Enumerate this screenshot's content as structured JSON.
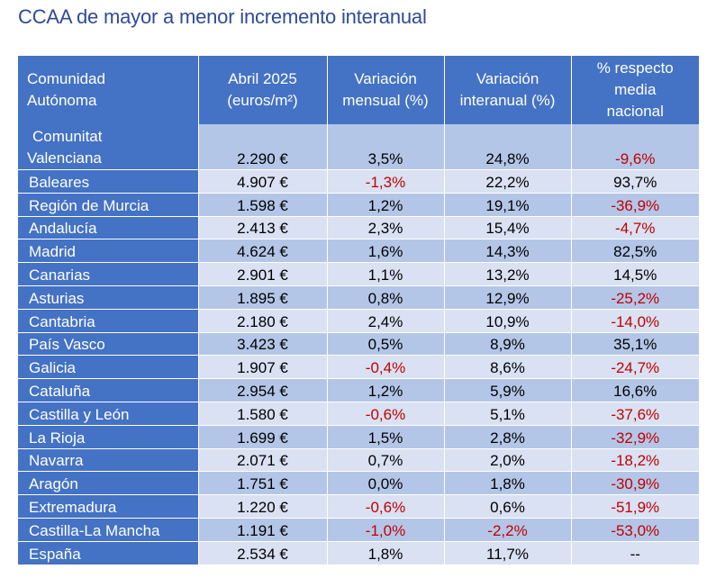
{
  "title": "CCAA de mayor a menor incremento interanual",
  "headers": {
    "c1": [
      "Comunidad",
      "Autónoma"
    ],
    "c2": [
      "Abril 2025",
      "(euros/m²)"
    ],
    "c3": [
      "Variación",
      "mensual (%)"
    ],
    "c4": [
      "Variación",
      "interanual (%)"
    ],
    "c5": [
      "% respecto",
      "media",
      "nacional"
    ]
  },
  "rows": [
    {
      "name": [
        "Comunitat",
        "Valenciana"
      ],
      "price": "2.290 €",
      "monthly": "3,5%",
      "yearly": "24,8%",
      "national": "-9,6%"
    },
    {
      "name": "Baleares",
      "price": "4.907 €",
      "monthly": "-1,3%",
      "yearly": "22,2%",
      "national": "93,7%"
    },
    {
      "name": "Región de Murcia",
      "price": "1.598 €",
      "monthly": "1,2%",
      "yearly": "19,1%",
      "national": "-36,9%"
    },
    {
      "name": "Andalucía",
      "price": "2.413 €",
      "monthly": "2,3%",
      "yearly": "15,4%",
      "national": "-4,7%"
    },
    {
      "name": "Madrid",
      "price": "4.624 €",
      "monthly": "1,6%",
      "yearly": "14,3%",
      "national": "82,5%"
    },
    {
      "name": "Canarias",
      "price": "2.901 €",
      "monthly": "1,1%",
      "yearly": "13,2%",
      "national": "14,5%"
    },
    {
      "name": "Asturias",
      "price": "1.895 €",
      "monthly": "0,8%",
      "yearly": "12,9%",
      "national": "-25,2%"
    },
    {
      "name": "Cantabria",
      "price": "2.180 €",
      "monthly": "2,4%",
      "yearly": "10,9%",
      "national": "-14,0%"
    },
    {
      "name": "País Vasco",
      "price": "3.423 €",
      "monthly": "0,5%",
      "yearly": "8,9%",
      "national": "35,1%"
    },
    {
      "name": "Galicia",
      "price": "1.907 €",
      "monthly": "-0,4%",
      "yearly": "8,6%",
      "national": "-24,7%"
    },
    {
      "name": "Cataluña",
      "price": "2.954 €",
      "monthly": "1,2%",
      "yearly": "5,9%",
      "national": "16,6%"
    },
    {
      "name": "Castilla y León",
      "price": "1.580 €",
      "monthly": "-0,6%",
      "yearly": "5,1%",
      "national": "-37,6%"
    },
    {
      "name": "La Rioja",
      "price": "1.699 €",
      "monthly": "1,5%",
      "yearly": "2,8%",
      "national": "-32,9%"
    },
    {
      "name": "Navarra",
      "price": "2.071 €",
      "monthly": "0,7%",
      "yearly": "2,0%",
      "national": "-18,2%"
    },
    {
      "name": "Aragón",
      "price": "1.751 €",
      "monthly": "0,0%",
      "yearly": "1,8%",
      "national": "-30,9%"
    },
    {
      "name": "Extremadura",
      "price": "1.220 €",
      "monthly": "-0,6%",
      "yearly": "0,6%",
      "national": "-51,9%"
    },
    {
      "name": "Castilla-La Mancha",
      "price": "1.191 €",
      "monthly": "-1,0%",
      "yearly": "-2,2%",
      "national": "-53,0%"
    },
    {
      "name": "España",
      "price": "2.534 €",
      "monthly": "1,8%",
      "yearly": "11,7%",
      "national": "--"
    }
  ],
  "colors": {
    "header_bg": "#4472c4",
    "band_dark": "#b4c6e7",
    "band_light": "#d9e1f2",
    "negative": "#c00000",
    "title": "#2e4a9a"
  }
}
